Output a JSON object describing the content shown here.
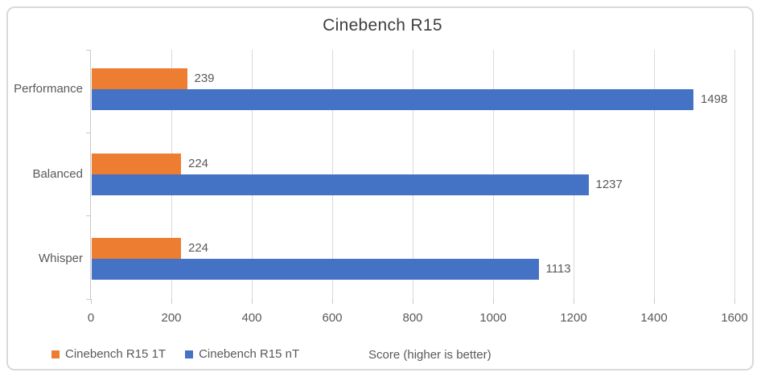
{
  "chart_data": {
    "type": "bar",
    "orientation": "horizontal",
    "title": "Cinebench R15",
    "categories": [
      "Performance",
      "Balanced",
      "Whisper"
    ],
    "series": [
      {
        "name": "Cinebench R15 1T",
        "color": "#ED7D31",
        "values": [
          239,
          224,
          224
        ]
      },
      {
        "name": "Cinebench R15 nT",
        "color": "#4472C4",
        "values": [
          1498,
          1237,
          1113
        ]
      }
    ],
    "xlabel": "Score (higher is better)",
    "xlim": [
      0,
      1600
    ],
    "xticks": [
      0,
      200,
      400,
      600,
      800,
      1000,
      1200,
      1400,
      1600
    ],
    "grid": true,
    "legend_position": "bottom-left",
    "colors": {
      "grid": "#D9D9D9",
      "axis": "#C9C9C9",
      "text": "#595959",
      "title": "#404040"
    }
  }
}
